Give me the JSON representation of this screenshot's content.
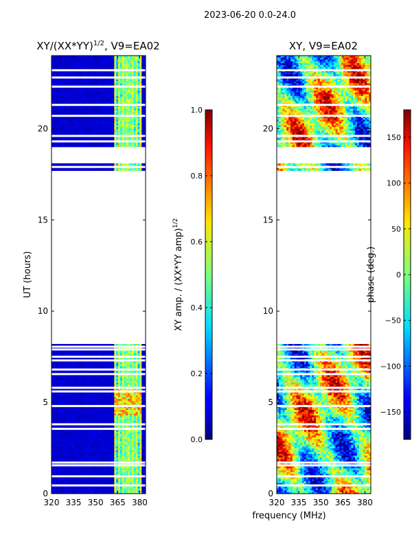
{
  "suptitle": "2023-06-20 0.0-24.0",
  "common_xlabel": "frequency (MHz)",
  "chart_data": [
    {
      "type": "heatmap",
      "title_main": "XY/(XX*YY)",
      "title_sup": "1/2",
      "title_suffix": ", V9=EA02",
      "ylabel": "UT (hours)",
      "xlim": [
        320,
        384
      ],
      "ylim": [
        0,
        24
      ],
      "xticks": [
        320,
        335,
        350,
        365,
        380
      ],
      "yticks": [
        0,
        5,
        10,
        15,
        20
      ],
      "colormap": "jet",
      "data_ut_ranges": [
        [
          0.0,
          8.2
        ],
        [
          17.7,
          18.1
        ],
        [
          19.0,
          24.0
        ]
      ],
      "row_gap_ut": [
        0.45,
        0.95,
        1.55,
        1.7,
        3.55,
        3.8,
        4.8,
        5.6,
        5.8,
        6.55,
        6.8,
        7.3,
        7.5,
        7.9,
        8.05,
        17.9,
        19.3,
        19.6,
        20.7,
        21.3,
        22.3,
        22.8,
        23.2
      ],
      "colorbar": {
        "label_main": "XY amp. / (XX*YY amp)",
        "label_sup": "1/2",
        "range": [
          0.0,
          1.0
        ],
        "ticks": [
          "0.0",
          "0.2",
          "0.4",
          "0.6",
          "0.8",
          "1.0"
        ]
      }
    },
    {
      "type": "heatmap",
      "title": "XY, V9=EA02",
      "xlim": [
        320,
        384
      ],
      "ylim": [
        0,
        24
      ],
      "xticks": [
        320,
        335,
        350,
        365,
        380
      ],
      "yticks": [
        0,
        5,
        10,
        15,
        20
      ],
      "colormap": "jet",
      "data_ut_ranges": [
        [
          0.0,
          8.2
        ],
        [
          17.7,
          18.1
        ],
        [
          19.0,
          24.0
        ]
      ],
      "row_gap_ut": [
        0.45,
        0.95,
        1.55,
        1.7,
        3.55,
        3.8,
        4.8,
        5.6,
        5.8,
        6.55,
        6.8,
        7.3,
        7.5,
        7.9,
        8.05,
        17.9,
        19.3,
        19.6,
        20.7,
        21.3,
        22.3,
        22.8,
        23.2
      ],
      "colorbar": {
        "label": "phase (deg.)",
        "range": [
          -180,
          180
        ],
        "ticks": [
          "−150",
          "−100",
          "−50",
          "0",
          "50",
          "100",
          "150"
        ],
        "tick_values": [
          -150,
          -100,
          -50,
          0,
          50,
          100,
          150
        ]
      }
    }
  ]
}
